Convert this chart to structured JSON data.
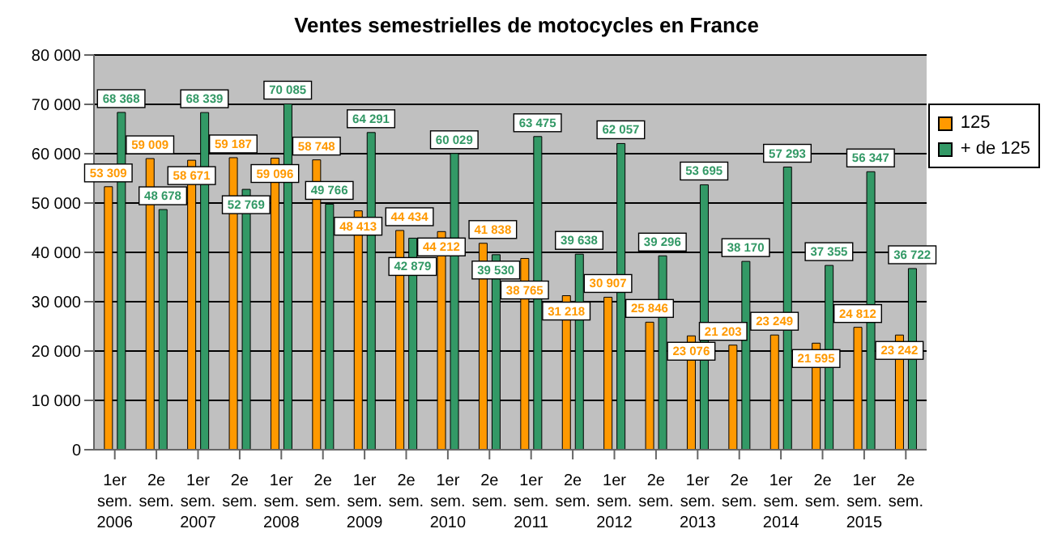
{
  "chart_data": {
    "type": "bar",
    "title": "Ventes semestrielles de motocycles en France",
    "categories": [
      "1er sem. 2006",
      "2e sem.",
      "1er sem. 2007",
      "2e sem.",
      "1er sem. 2008",
      "2e sem.",
      "1er sem. 2009",
      "2e sem.",
      "1er sem. 2010",
      "2e sem.",
      "1er sem. 2011",
      "2e sem.",
      "1er sem. 2012",
      "2e sem.",
      "1er sem. 2013",
      "2e sem.",
      "1er sem. 2014",
      "2e sem.",
      "1er sem. 2015",
      "2e sem."
    ],
    "series": [
      {
        "name": "125",
        "color": "#ff9900",
        "values": [
          53309,
          59009,
          58671,
          59187,
          59096,
          58748,
          48413,
          44434,
          44212,
          41838,
          38765,
          31218,
          30907,
          25846,
          23076,
          21203,
          23249,
          21595,
          24812,
          23242
        ]
      },
      {
        "name": "+ de 125",
        "color": "#339966",
        "values": [
          68368,
          48678,
          68339,
          52769,
          70085,
          49766,
          64291,
          42879,
          60029,
          39530,
          63475,
          39638,
          62057,
          39296,
          53695,
          38170,
          57293,
          37355,
          56347,
          36722
        ]
      }
    ],
    "ylim": [
      0,
      80000
    ],
    "yticks": [
      {
        "value": 0,
        "label": "0"
      },
      {
        "value": 10000,
        "label": "10 000"
      },
      {
        "value": 20000,
        "label": "20 000"
      },
      {
        "value": 30000,
        "label": "30 000"
      },
      {
        "value": 40000,
        "label": "40 000"
      },
      {
        "value": 50000,
        "label": "50 000"
      },
      {
        "value": 60000,
        "label": "60 000"
      },
      {
        "value": 70000,
        "label": "70 000"
      },
      {
        "value": 80000,
        "label": "80 000"
      }
    ],
    "grid": "y",
    "legend": "top right",
    "data_labels": true
  }
}
